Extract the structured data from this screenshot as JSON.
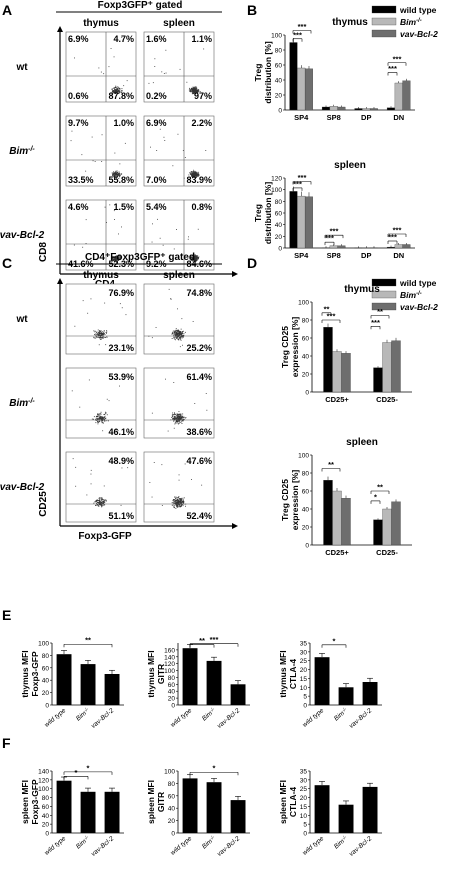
{
  "panels": {
    "A": {
      "label": "A",
      "header": "Foxp3GFP⁺ gated",
      "cols": [
        "thymus",
        "spleen"
      ],
      "rows": [
        "wt",
        "Bim-/-",
        "vav-Bcl-2"
      ],
      "row_keys": [
        "wt",
        "bim",
        "vav"
      ],
      "xlabel": "CD4",
      "ylabel": "CD8",
      "quadrants": {
        "wt": {
          "thymus": [
            "6.9%",
            "4.7%",
            "0.6%",
            "87.8%"
          ],
          "spleen": [
            "1.6%",
            "1.1%",
            "0.2%",
            "97%"
          ]
        },
        "bim": {
          "thymus": [
            "9.7%",
            "1.0%",
            "33.5%",
            "55.8%"
          ],
          "spleen": [
            "6.9%",
            "2.2%",
            "7.0%",
            "83.9%"
          ]
        },
        "vav": {
          "thymus": [
            "4.6%",
            "1.5%",
            "41.6%",
            "52.3%"
          ],
          "spleen": [
            "5.4%",
            "0.8%",
            "9.2%",
            "84.6%"
          ]
        }
      }
    },
    "B": {
      "label": "B"
    },
    "C": {
      "label": "C",
      "header": "CD4⁺Foxp3GFP⁺ gated",
      "cols": [
        "thymus",
        "spleen"
      ],
      "rows": [
        "wt",
        "Bim-/-",
        "vav-Bcl-2"
      ],
      "row_keys": [
        "wt",
        "bim",
        "vav"
      ],
      "xlabel": "Foxp3-GFP",
      "ylabel": "CD25",
      "quadrants": {
        "wt": {
          "thymus": [
            "76.9%",
            "23.1%"
          ],
          "spleen": [
            "74.8%",
            "25.2%"
          ]
        },
        "bim": {
          "thymus": [
            "53.9%",
            "46.1%"
          ],
          "spleen": [
            "61.4%",
            "38.6%"
          ]
        },
        "vav": {
          "thymus": [
            "48.9%",
            "51.1%"
          ],
          "spleen": [
            "47.6%",
            "52.4%"
          ]
        }
      }
    },
    "D": {
      "label": "D"
    },
    "E": {
      "label": "E"
    },
    "F": {
      "label": "F"
    }
  },
  "legend": [
    "wild type",
    "Bim-/-",
    "vav-Bcl-2"
  ],
  "colors": {
    "wt": "#000000",
    "bim": "#b8b8b8",
    "vav": "#6e6e6e"
  },
  "chart_data": [
    {
      "id": "B-thymus",
      "type": "bar",
      "title": "thymus",
      "ylabel": "Treg distribution [%]",
      "ylim": [
        0,
        100
      ],
      "yticks": [
        0,
        20,
        40,
        60,
        80,
        100
      ],
      "categories": [
        "SP4",
        "SP8",
        "DP",
        "DN"
      ],
      "series": [
        {
          "name": "wild type",
          "values": [
            90,
            4,
            2,
            3
          ]
        },
        {
          "name": "Bim-/-",
          "values": [
            56,
            5,
            2,
            36
          ]
        },
        {
          "name": "vav-Bcl-2",
          "values": [
            55,
            4,
            2,
            39
          ]
        }
      ],
      "annotations": [
        "***",
        "***",
        "***",
        "***"
      ]
    },
    {
      "id": "B-spleen",
      "type": "bar",
      "title": "spleen",
      "ylabel": "Treg distribution [%]",
      "ylim": [
        0,
        120
      ],
      "yticks": [
        0,
        20,
        40,
        60,
        80,
        100,
        120
      ],
      "categories": [
        "SP4",
        "SP8",
        "DP",
        "DN"
      ],
      "series": [
        {
          "name": "wild type",
          "values": [
            97,
            0.5,
            0.3,
            1.5
          ]
        },
        {
          "name": "Bim-/-",
          "values": [
            89,
            4,
            0.5,
            6
          ]
        },
        {
          "name": "vav-Bcl-2",
          "values": [
            88,
            4,
            0.5,
            6
          ]
        }
      ],
      "annotations": [
        "***",
        "***",
        "***",
        "***",
        "***",
        "***"
      ]
    },
    {
      "id": "D-thymus",
      "type": "bar",
      "title": "thymus",
      "ylabel": "Treg CD25 expression [%]",
      "ylim": [
        0,
        100
      ],
      "yticks": [
        0,
        20,
        40,
        60,
        80,
        100
      ],
      "categories": [
        "CD25+",
        "CD25-"
      ],
      "series": [
        {
          "name": "wild type",
          "values": [
            72,
            27
          ]
        },
        {
          "name": "Bim-/-",
          "values": [
            45,
            55
          ]
        },
        {
          "name": "vav-Bcl-2",
          "values": [
            43,
            57
          ]
        }
      ],
      "annotations": [
        "**",
        "***",
        "**",
        "***"
      ]
    },
    {
      "id": "D-spleen",
      "type": "bar",
      "title": "spleen",
      "ylabel": "Treg CD25 expression [%]",
      "ylim": [
        0,
        100
      ],
      "yticks": [
        0,
        20,
        40,
        60,
        80,
        100
      ],
      "categories": [
        "CD25+",
        "CD25-"
      ],
      "series": [
        {
          "name": "wild type",
          "values": [
            72,
            28
          ]
        },
        {
          "name": "Bim-/-",
          "values": [
            60,
            40
          ]
        },
        {
          "name": "vav-Bcl-2",
          "values": [
            52,
            48
          ]
        }
      ],
      "annotations": [
        "**",
        "**",
        "*"
      ]
    },
    {
      "id": "E-foxp3",
      "type": "bar",
      "ylabel": "thymus MFI Foxp3-GFP",
      "ylim": [
        0,
        100
      ],
      "yticks": [
        0,
        20,
        40,
        60,
        80,
        100
      ],
      "categories": [
        "wild type",
        "Bim-/-",
        "vav-Bcl-2"
      ],
      "values": [
        82,
        66,
        50
      ],
      "annotations": [
        "**"
      ]
    },
    {
      "id": "E-gitr",
      "type": "bar",
      "ylabel": "thymus MFI GITR",
      "ylim": [
        0,
        180
      ],
      "yticks": [
        0,
        20,
        40,
        60,
        80,
        100,
        120,
        140,
        160
      ],
      "categories": [
        "wild type",
        "Bim-/-",
        "vav-Bcl-2"
      ],
      "values": [
        165,
        128,
        60
      ],
      "annotations": [
        "**",
        "***"
      ]
    },
    {
      "id": "E-ctla4",
      "type": "bar",
      "ylabel": "thymus MFI CTLA-4",
      "ylim": [
        0,
        35
      ],
      "yticks": [
        0,
        5,
        10,
        15,
        20,
        25,
        30,
        35
      ],
      "categories": [
        "wild type",
        "Bim-/-",
        "vav-Bcl-2"
      ],
      "values": [
        27,
        10,
        13
      ],
      "annotations": [
        "*"
      ]
    },
    {
      "id": "F-foxp3",
      "type": "bar",
      "ylabel": "spleen MFI Foxp3-GFP",
      "ylim": [
        0,
        140
      ],
      "yticks": [
        0,
        20,
        40,
        60,
        80,
        100,
        120,
        140
      ],
      "categories": [
        "wild type",
        "Bim-/-",
        "vav-Bcl-2"
      ],
      "values": [
        118,
        93,
        93
      ],
      "annotations": [
        "*",
        "*"
      ]
    },
    {
      "id": "F-gitr",
      "type": "bar",
      "ylabel": "spleen MFI GITR",
      "ylim": [
        0,
        100
      ],
      "yticks": [
        0,
        20,
        40,
        60,
        80,
        100
      ],
      "categories": [
        "wild type",
        "Bim-/-",
        "vav-Bcl-2"
      ],
      "values": [
        88,
        82,
        53
      ],
      "annotations": [
        "*"
      ]
    },
    {
      "id": "F-ctla4",
      "type": "bar",
      "ylabel": "spleen MFI CTLA-4",
      "ylim": [
        0,
        35
      ],
      "yticks": [
        0,
        5,
        10,
        15,
        20,
        25,
        30,
        35
      ],
      "categories": [
        "wild type",
        "Bim-/-",
        "vav-Bcl-2"
      ],
      "values": [
        27,
        16,
        26
      ]
    }
  ]
}
